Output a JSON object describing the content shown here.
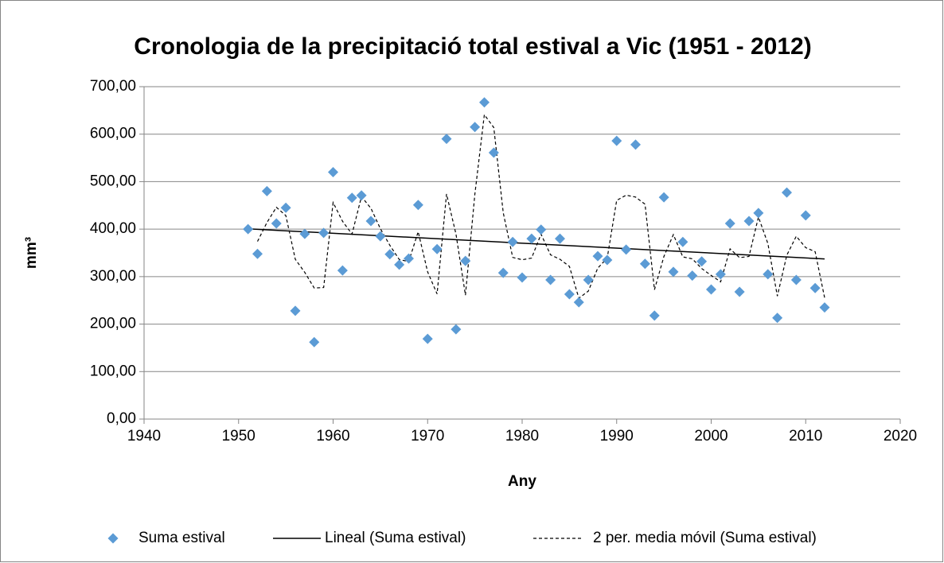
{
  "chart_data": {
    "type": "scatter",
    "title": "Cronologia de la precipitació total estival a Vic (1951 - 2012)",
    "x_label": "Any",
    "y_label": "mm³",
    "x": [
      1951,
      1952,
      1953,
      1954,
      1955,
      1956,
      1957,
      1958,
      1959,
      1960,
      1961,
      1962,
      1963,
      1964,
      1965,
      1966,
      1967,
      1968,
      1969,
      1970,
      1971,
      1972,
      1973,
      1974,
      1975,
      1976,
      1977,
      1978,
      1979,
      1980,
      1981,
      1982,
      1983,
      1984,
      1985,
      1986,
      1987,
      1988,
      1989,
      1990,
      1991,
      1992,
      1993,
      1994,
      1995,
      1996,
      1997,
      1998,
      1999,
      2000,
      2001,
      2002,
      2003,
      2004,
      2005,
      2006,
      2007,
      2008,
      2009,
      2010,
      2011,
      2012
    ],
    "series": [
      {
        "name": "Suma estival",
        "color": "#5b9bd5",
        "values": [
          400,
          348,
          480,
          412,
          445,
          228,
          390,
          162,
          392,
          520,
          313,
          466,
          471,
          417,
          385,
          347,
          325,
          338,
          451,
          169,
          358,
          590,
          189,
          333,
          615,
          667,
          561,
          308,
          373,
          298,
          380,
          399,
          293,
          380,
          263,
          246,
          293,
          343,
          335,
          586,
          357,
          578,
          327,
          218,
          467,
          310,
          373,
          302,
          332,
          273,
          305,
          412,
          268,
          417,
          434,
          305,
          213,
          477,
          293,
          429,
          276,
          235
        ]
      }
    ],
    "trendlines": [
      {
        "name": "Lineal (Suma estival)",
        "type": "linear",
        "color": "#000000"
      },
      {
        "name": "2 per. media móvil (Suma estival)",
        "type": "moving_average",
        "period": 2,
        "color": "#000000"
      }
    ],
    "xlim": [
      1940,
      2020
    ],
    "xticks": [
      1940,
      1950,
      1960,
      1970,
      1980,
      1990,
      2000,
      2010,
      2020
    ],
    "ylim": [
      0,
      700
    ],
    "yticks": [
      {
        "value": 0,
        "label": "0,00"
      },
      {
        "value": 100,
        "label": "100,00"
      },
      {
        "value": 200,
        "label": "200,00"
      },
      {
        "value": 300,
        "label": "300,00"
      },
      {
        "value": 400,
        "label": "400,00"
      },
      {
        "value": 500,
        "label": "500,00"
      },
      {
        "value": 600,
        "label": "600,00"
      },
      {
        "value": 700,
        "label": "700,00"
      }
    ],
    "grid": true,
    "legend": "bottom"
  }
}
